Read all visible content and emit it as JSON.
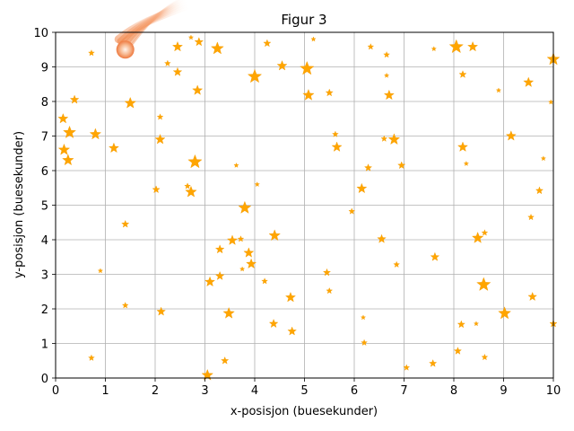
{
  "chart_data": {
    "type": "scatter",
    "title": "Figur 3",
    "xlabel": "x-posisjon (buesekunder)",
    "ylabel": "y-posisjon (buesekunder)",
    "xlim": [
      0,
      10
    ],
    "ylim": [
      0,
      10
    ],
    "xticks": [
      "0",
      "1",
      "2",
      "3",
      "4",
      "5",
      "6",
      "7",
      "8",
      "9",
      "10"
    ],
    "yticks": [
      "0",
      "1",
      "2",
      "3",
      "4",
      "5",
      "6",
      "7",
      "8",
      "9",
      "10"
    ],
    "grid": true,
    "marker": "star",
    "marker_color": "#ffa500",
    "comet": {
      "x": 1.4,
      "y": 9.5,
      "direction": "toward upper right",
      "color": "#f08040"
    },
    "points": [
      {
        "x": 0.15,
        "y": 7.5,
        "s": 6
      },
      {
        "x": 0.17,
        "y": 6.6,
        "s": 7
      },
      {
        "x": 0.28,
        "y": 7.1,
        "s": 8
      },
      {
        "x": 0.25,
        "y": 6.3,
        "s": 7
      },
      {
        "x": 0.38,
        "y": 8.05,
        "s": 5
      },
      {
        "x": 0.72,
        "y": 9.4,
        "s": 3
      },
      {
        "x": 0.8,
        "y": 7.05,
        "s": 7
      },
      {
        "x": 0.72,
        "y": 0.58,
        "s": 3
      },
      {
        "x": 0.9,
        "y": 3.1,
        "s": 2
      },
      {
        "x": 1.17,
        "y": 6.65,
        "s": 6
      },
      {
        "x": 1.4,
        "y": 4.45,
        "s": 4
      },
      {
        "x": 1.4,
        "y": 2.1,
        "s": 3
      },
      {
        "x": 1.5,
        "y": 7.95,
        "s": 7
      },
      {
        "x": 2.02,
        "y": 5.45,
        "s": 4
      },
      {
        "x": 2.1,
        "y": 7.55,
        "s": 3
      },
      {
        "x": 2.1,
        "y": 6.9,
        "s": 6
      },
      {
        "x": 2.12,
        "y": 1.92,
        "s": 5
      },
      {
        "x": 2.25,
        "y": 9.1,
        "s": 3
      },
      {
        "x": 2.45,
        "y": 9.58,
        "s": 6
      },
      {
        "x": 2.45,
        "y": 8.85,
        "s": 5
      },
      {
        "x": 2.65,
        "y": 5.55,
        "s": 3
      },
      {
        "x": 2.72,
        "y": 9.85,
        "s": 2
      },
      {
        "x": 2.72,
        "y": 5.38,
        "s": 7
      },
      {
        "x": 2.8,
        "y": 6.25,
        "s": 9
      },
      {
        "x": 2.85,
        "y": 8.32,
        "s": 6
      },
      {
        "x": 2.88,
        "y": 9.72,
        "s": 5
      },
      {
        "x": 3.05,
        "y": 0.08,
        "s": 7
      },
      {
        "x": 3.1,
        "y": 2.78,
        "s": 6
      },
      {
        "x": 3.25,
        "y": 9.53,
        "s": 8
      },
      {
        "x": 3.3,
        "y": 3.72,
        "s": 5
      },
      {
        "x": 3.3,
        "y": 2.95,
        "s": 5
      },
      {
        "x": 3.4,
        "y": 0.5,
        "s": 4
      },
      {
        "x": 3.48,
        "y": 1.87,
        "s": 7
      },
      {
        "x": 3.55,
        "y": 3.98,
        "s": 6
      },
      {
        "x": 3.63,
        "y": 6.15,
        "s": 2
      },
      {
        "x": 3.72,
        "y": 4.02,
        "s": 3
      },
      {
        "x": 3.75,
        "y": 3.15,
        "s": 2
      },
      {
        "x": 3.8,
        "y": 4.92,
        "s": 8
      },
      {
        "x": 3.88,
        "y": 3.62,
        "s": 6
      },
      {
        "x": 3.93,
        "y": 3.3,
        "s": 6
      },
      {
        "x": 4.0,
        "y": 8.72,
        "s": 9
      },
      {
        "x": 4.05,
        "y": 5.6,
        "s": 2
      },
      {
        "x": 4.2,
        "y": 2.8,
        "s": 3
      },
      {
        "x": 4.25,
        "y": 9.68,
        "s": 4
      },
      {
        "x": 4.38,
        "y": 1.57,
        "s": 5
      },
      {
        "x": 4.4,
        "y": 4.12,
        "s": 7
      },
      {
        "x": 4.55,
        "y": 9.03,
        "s": 6
      },
      {
        "x": 4.72,
        "y": 2.33,
        "s": 6
      },
      {
        "x": 4.75,
        "y": 1.35,
        "s": 5
      },
      {
        "x": 5.05,
        "y": 8.95,
        "s": 9
      },
      {
        "x": 5.08,
        "y": 8.18,
        "s": 7
      },
      {
        "x": 5.18,
        "y": 9.8,
        "s": 2
      },
      {
        "x": 5.45,
        "y": 3.05,
        "s": 4
      },
      {
        "x": 5.5,
        "y": 2.52,
        "s": 3
      },
      {
        "x": 5.5,
        "y": 8.25,
        "s": 4
      },
      {
        "x": 5.62,
        "y": 7.05,
        "s": 3
      },
      {
        "x": 5.65,
        "y": 6.68,
        "s": 6
      },
      {
        "x": 5.95,
        "y": 4.82,
        "s": 3
      },
      {
        "x": 6.15,
        "y": 5.48,
        "s": 6
      },
      {
        "x": 6.18,
        "y": 1.75,
        "s": 2
      },
      {
        "x": 6.2,
        "y": 1.02,
        "s": 3
      },
      {
        "x": 6.28,
        "y": 6.08,
        "s": 4
      },
      {
        "x": 6.33,
        "y": 9.58,
        "s": 3
      },
      {
        "x": 6.55,
        "y": 4.02,
        "s": 5
      },
      {
        "x": 6.6,
        "y": 6.92,
        "s": 3
      },
      {
        "x": 6.65,
        "y": 9.35,
        "s": 3
      },
      {
        "x": 6.65,
        "y": 8.75,
        "s": 2
      },
      {
        "x": 6.7,
        "y": 8.18,
        "s": 6
      },
      {
        "x": 6.8,
        "y": 6.9,
        "s": 7
      },
      {
        "x": 6.85,
        "y": 3.28,
        "s": 3
      },
      {
        "x": 6.95,
        "y": 6.15,
        "s": 4
      },
      {
        "x": 7.05,
        "y": 0.3,
        "s": 3
      },
      {
        "x": 7.58,
        "y": 0.42,
        "s": 4
      },
      {
        "x": 7.6,
        "y": 9.52,
        "s": 2
      },
      {
        "x": 7.62,
        "y": 3.5,
        "s": 5
      },
      {
        "x": 8.05,
        "y": 9.58,
        "s": 9
      },
      {
        "x": 8.08,
        "y": 0.78,
        "s": 4
      },
      {
        "x": 8.15,
        "y": 1.55,
        "s": 4
      },
      {
        "x": 8.18,
        "y": 6.68,
        "s": 6
      },
      {
        "x": 8.18,
        "y": 8.78,
        "s": 4
      },
      {
        "x": 8.25,
        "y": 6.2,
        "s": 2
      },
      {
        "x": 8.38,
        "y": 9.58,
        "s": 6
      },
      {
        "x": 8.45,
        "y": 1.57,
        "s": 2
      },
      {
        "x": 8.48,
        "y": 4.05,
        "s": 7
      },
      {
        "x": 8.6,
        "y": 2.7,
        "s": 9
      },
      {
        "x": 8.62,
        "y": 4.2,
        "s": 3
      },
      {
        "x": 8.62,
        "y": 0.6,
        "s": 3
      },
      {
        "x": 8.9,
        "y": 8.32,
        "s": 2
      },
      {
        "x": 9.02,
        "y": 1.87,
        "s": 8
      },
      {
        "x": 9.15,
        "y": 7.0,
        "s": 6
      },
      {
        "x": 9.5,
        "y": 8.55,
        "s": 6
      },
      {
        "x": 9.55,
        "y": 4.65,
        "s": 3
      },
      {
        "x": 9.58,
        "y": 2.35,
        "s": 5
      },
      {
        "x": 9.72,
        "y": 5.42,
        "s": 4
      },
      {
        "x": 9.8,
        "y": 6.35,
        "s": 2
      },
      {
        "x": 9.95,
        "y": 7.98,
        "s": 2
      },
      {
        "x": 10.0,
        "y": 9.22,
        "s": 8
      },
      {
        "x": 10.0,
        "y": 1.57,
        "s": 4
      }
    ]
  }
}
